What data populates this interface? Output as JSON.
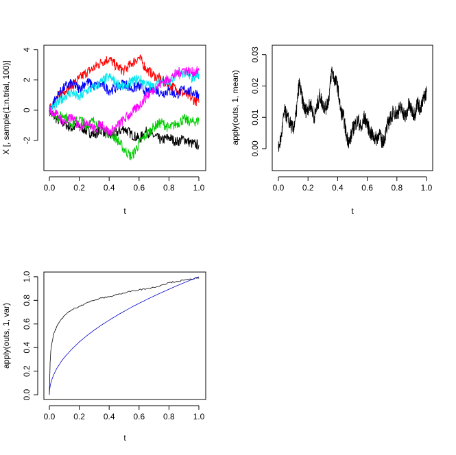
{
  "chart_data": [
    {
      "type": "line",
      "xlabel": "t",
      "ylabel": "X [, sample(1:n.trial, 100)]",
      "xlim": [
        0,
        1
      ],
      "ylim": [
        -4,
        4.3
      ],
      "xticks": [
        0.0,
        0.2,
        0.4,
        0.6,
        0.8,
        1.0
      ],
      "xtick_labels": [
        "0.0",
        "0.2",
        "0.4",
        "0.6",
        "0.8",
        "1.0"
      ],
      "yticks": [
        -2,
        0,
        2,
        4
      ],
      "ytick_labels": [
        "-2",
        "0",
        "2",
        "4"
      ],
      "grid": false,
      "series_colors": [
        "#000000",
        "#ff0000",
        "#00cc00",
        "#0000ff",
        "#00e5ee",
        "#ff00ff"
      ],
      "series": [
        {
          "color": "#000000",
          "x": [
            0,
            0.05,
            0.1,
            0.15,
            0.2,
            0.25,
            0.3,
            0.35,
            0.4,
            0.45,
            0.5,
            0.55,
            0.6,
            0.65,
            0.7,
            0.75,
            0.8,
            0.85,
            0.9,
            0.95,
            1.0
          ],
          "values": [
            0,
            -0.6,
            -0.9,
            -1.2,
            -1.0,
            -1.4,
            -1.6,
            -1.3,
            -1.7,
            -1.5,
            -1.2,
            -1.6,
            -1.9,
            -1.4,
            -1.7,
            -2.0,
            -1.8,
            -2.1,
            -1.9,
            -2.2,
            -2.3
          ]
        },
        {
          "color": "#ff0000",
          "x": [
            0,
            0.05,
            0.1,
            0.15,
            0.2,
            0.25,
            0.3,
            0.35,
            0.4,
            0.45,
            0.5,
            0.55,
            0.6,
            0.65,
            0.7,
            0.75,
            0.8,
            0.85,
            0.9,
            0.95,
            1.0
          ],
          "values": [
            0,
            0.8,
            1.3,
            1.6,
            2.1,
            2.5,
            2.8,
            3.2,
            3.4,
            2.9,
            2.6,
            3.1,
            3.5,
            2.7,
            2.3,
            2.0,
            1.7,
            1.4,
            1.1,
            0.8,
            0.5
          ]
        },
        {
          "color": "#00cc00",
          "x": [
            0,
            0.05,
            0.1,
            0.15,
            0.2,
            0.25,
            0.3,
            0.35,
            0.4,
            0.45,
            0.5,
            0.55,
            0.6,
            0.65,
            0.7,
            0.75,
            0.8,
            0.85,
            0.9,
            0.95,
            1.0
          ],
          "values": [
            0,
            -0.5,
            -0.3,
            -0.9,
            -0.6,
            -1.0,
            -0.7,
            -1.2,
            -1.5,
            -1.9,
            -2.6,
            -3.1,
            -2.2,
            -1.6,
            -1.1,
            -0.8,
            -1.2,
            -0.9,
            -0.6,
            -0.8,
            -0.7
          ]
        },
        {
          "color": "#0000ff",
          "x": [
            0,
            0.05,
            0.1,
            0.15,
            0.2,
            0.25,
            0.3,
            0.35,
            0.4,
            0.45,
            0.5,
            0.55,
            0.6,
            0.65,
            0.7,
            0.75,
            0.8,
            0.85,
            0.9,
            0.95,
            1.0
          ],
          "values": [
            0,
            0.9,
            1.5,
            1.8,
            1.4,
            1.9,
            1.6,
            1.7,
            1.3,
            1.5,
            1.8,
            1.4,
            1.6,
            1.2,
            1.5,
            1.1,
            1.3,
            1.0,
            1.4,
            1.2,
            1.1
          ]
        },
        {
          "color": "#00e5ee",
          "x": [
            0,
            0.05,
            0.1,
            0.15,
            0.2,
            0.25,
            0.3,
            0.35,
            0.4,
            0.45,
            0.5,
            0.55,
            0.6,
            0.65,
            0.7,
            0.75,
            0.8,
            0.85,
            0.9,
            0.95,
            1.0
          ],
          "values": [
            0,
            0.4,
            0.9,
            1.2,
            0.8,
            1.3,
            1.5,
            1.9,
            2.2,
            1.8,
            1.5,
            1.9,
            2.1,
            1.7,
            1.5,
            2.0,
            1.8,
            2.3,
            2.5,
            2.1,
            2.4
          ]
        },
        {
          "color": "#ff00ff",
          "x": [
            0,
            0.05,
            0.1,
            0.15,
            0.2,
            0.25,
            0.3,
            0.35,
            0.4,
            0.45,
            0.5,
            0.55,
            0.6,
            0.65,
            0.7,
            0.75,
            0.8,
            0.85,
            0.9,
            0.95,
            1.0
          ],
          "values": [
            0,
            -0.3,
            -0.8,
            -0.5,
            -1.1,
            -0.7,
            -1.3,
            -0.9,
            -1.5,
            -1.1,
            -0.6,
            -0.2,
            0.3,
            0.9,
            1.4,
            1.8,
            2.1,
            2.4,
            2.7,
            2.5,
            2.6
          ]
        }
      ]
    },
    {
      "type": "line",
      "xlabel": "t",
      "ylabel": "apply(outs, 1, mean)",
      "xlim": [
        0,
        1
      ],
      "ylim": [
        -0.007,
        0.033
      ],
      "xticks": [
        0.0,
        0.2,
        0.4,
        0.6,
        0.8,
        1.0
      ],
      "xtick_labels": [
        "0.0",
        "0.2",
        "0.4",
        "0.6",
        "0.8",
        "1.0"
      ],
      "yticks": [
        0.0,
        0.01,
        0.02,
        0.03
      ],
      "ytick_labels": [
        "0.00",
        "0.01",
        "0.02",
        "0.03"
      ],
      "grid": false,
      "series": [
        {
          "color": "#000000",
          "x": [
            0,
            0.02,
            0.04,
            0.06,
            0.08,
            0.1,
            0.12,
            0.14,
            0.16,
            0.18,
            0.2,
            0.22,
            0.24,
            0.26,
            0.28,
            0.3,
            0.32,
            0.34,
            0.36,
            0.38,
            0.4,
            0.42,
            0.44,
            0.46,
            0.48,
            0.5,
            0.52,
            0.54,
            0.56,
            0.58,
            0.6,
            0.62,
            0.64,
            0.66,
            0.68,
            0.7,
            0.72,
            0.74,
            0.76,
            0.78,
            0.8,
            0.82,
            0.84,
            0.86,
            0.88,
            0.9,
            0.92,
            0.94,
            0.96,
            0.98,
            1.0
          ],
          "values": [
            0.0,
            0.004,
            0.012,
            0.01,
            0.008,
            0.006,
            0.011,
            0.021,
            0.016,
            0.012,
            0.013,
            0.014,
            0.01,
            0.013,
            0.017,
            0.014,
            0.013,
            0.016,
            0.025,
            0.022,
            0.02,
            0.012,
            0.01,
            0.004,
            0.002,
            0.006,
            0.008,
            0.009,
            0.006,
            0.01,
            0.008,
            0.005,
            0.004,
            0.003,
            0.005,
            0.002,
            0.004,
            0.008,
            0.01,
            0.012,
            0.011,
            0.013,
            0.012,
            0.01,
            0.014,
            0.012,
            0.011,
            0.015,
            0.012,
            0.016,
            0.018
          ]
        }
      ]
    },
    {
      "type": "line",
      "xlabel": "t",
      "ylabel": "apply(outs, 1, var)",
      "xlim": [
        0,
        1
      ],
      "ylim": [
        -0.04,
        1.04
      ],
      "xticks": [
        0.0,
        0.2,
        0.4,
        0.6,
        0.8,
        1.0
      ],
      "xtick_labels": [
        "0.0",
        "0.2",
        "0.4",
        "0.6",
        "0.8",
        "1.0"
      ],
      "yticks": [
        0.0,
        0.2,
        0.4,
        0.6,
        0.8,
        1.0
      ],
      "ytick_labels": [
        "0.0",
        "0.2",
        "0.4",
        "0.6",
        "0.8",
        "1.0"
      ],
      "grid": false,
      "series": [
        {
          "color": "#000000",
          "x": [
            0,
            0.002,
            0.005,
            0.01,
            0.02,
            0.03,
            0.05,
            0.08,
            0.1,
            0.15,
            0.2,
            0.25,
            0.3,
            0.35,
            0.4,
            0.45,
            0.5,
            0.55,
            0.6,
            0.65,
            0.7,
            0.75,
            0.8,
            0.85,
            0.9,
            0.95,
            0.98,
            1.0
          ],
          "values": [
            0,
            0.12,
            0.28,
            0.38,
            0.46,
            0.52,
            0.58,
            0.64,
            0.67,
            0.72,
            0.75,
            0.78,
            0.8,
            0.82,
            0.83,
            0.85,
            0.86,
            0.88,
            0.89,
            0.9,
            0.91,
            0.93,
            0.95,
            0.96,
            0.97,
            0.98,
            0.99,
            0.985
          ]
        },
        {
          "color": "#0000cc",
          "x": [
            0,
            0.002,
            0.005,
            0.01,
            0.02,
            0.03,
            0.05,
            0.08,
            0.1,
            0.15,
            0.2,
            0.25,
            0.3,
            0.35,
            0.4,
            0.45,
            0.5,
            0.55,
            0.6,
            0.65,
            0.7,
            0.75,
            0.8,
            0.85,
            0.9,
            0.95,
            0.98,
            1.0
          ],
          "values": [
            0,
            0.045,
            0.071,
            0.1,
            0.141,
            0.173,
            0.224,
            0.283,
            0.316,
            0.387,
            0.447,
            0.5,
            0.548,
            0.592,
            0.632,
            0.671,
            0.707,
            0.742,
            0.775,
            0.806,
            0.837,
            0.866,
            0.894,
            0.922,
            0.949,
            0.975,
            0.99,
            1.0
          ]
        }
      ]
    }
  ]
}
